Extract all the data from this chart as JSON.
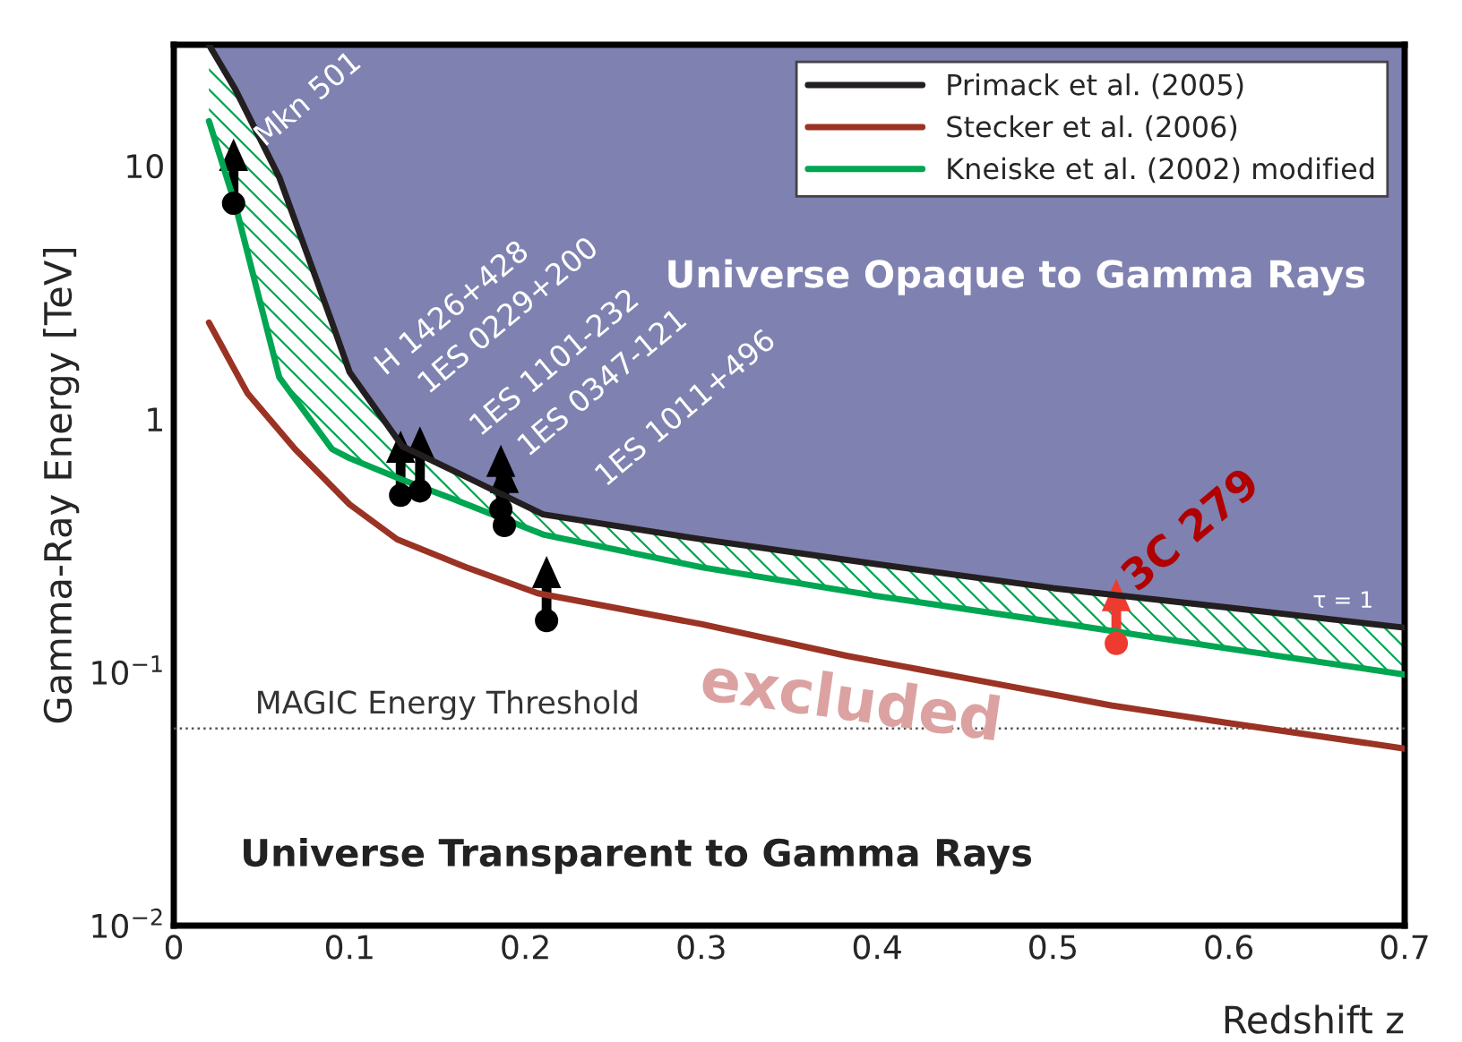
{
  "chart_data": {
    "type": "line",
    "xlabel": "Redshift z",
    "ylabel": "Gamma-Ray Energy [TeV]",
    "log": "y",
    "xlim": [
      0,
      0.7
    ],
    "ylim": [
      0.01,
      30
    ],
    "xticks": [
      0,
      0.1,
      0.2,
      0.3,
      0.4,
      0.5,
      0.6,
      0.7
    ],
    "yticks": [
      {
        "value": 0.01,
        "label": "10$^{−2}$"
      },
      {
        "value": 0.1,
        "label": "10$^{−1}$"
      },
      1,
      10
    ],
    "grid": false,
    "legend": "top right",
    "series": [
      {
        "name": "Primack et al. (2005)",
        "color": "#231f20",
        "x": [
          0.02,
          0.035,
          0.06,
          0.09,
          0.1,
          0.13,
          0.16,
          0.21,
          0.3,
          0.4,
          0.5,
          0.6,
          0.7
        ],
        "values": [
          30,
          20,
          9.0,
          2.4,
          1.53,
          0.78,
          0.62,
          0.42,
          0.335,
          0.267,
          0.215,
          0.18,
          0.15
        ]
      },
      {
        "name": "Stecker et al. (2006)",
        "color": "#9b3325",
        "x": [
          0.02,
          0.042,
          0.069,
          0.1,
          0.127,
          0.166,
          0.207,
          0.3,
          0.383,
          0.45,
          0.533,
          0.6,
          0.7
        ],
        "values": [
          2.4,
          1.26,
          0.76,
          0.46,
          0.335,
          0.26,
          0.205,
          0.155,
          0.116,
          0.095,
          0.074,
          0.063,
          0.05
        ]
      },
      {
        "name": "Kneiske et al. (2002) modified",
        "color": "#00a651",
        "x": [
          0.02,
          0.035,
          0.06,
          0.09,
          0.1,
          0.13,
          0.16,
          0.21,
          0.3,
          0.4,
          0.5,
          0.6,
          0.7
        ],
        "values": [
          15,
          7.0,
          1.46,
          0.76,
          0.7,
          0.575,
          0.48,
          0.35,
          0.26,
          0.2,
          0.158,
          0.124,
          0.098
        ]
      },
      {
        "type": "scatter",
        "marker": "circle",
        "color": "#000000",
        "x": [
          0.034,
          0.129,
          0.14,
          0.186,
          0.188,
          0.212
        ],
        "values": [
          7.1,
          0.5,
          0.52,
          0.44,
          0.38,
          0.16
        ]
      },
      {
        "type": "scatter",
        "marker": "circle",
        "color": "#ee3b2f",
        "x": [
          0.536
        ],
        "values": [
          0.13
        ]
      }
    ],
    "ref_lines": [
      {
        "axis": "y",
        "value": 0.06,
        "label": "MAGIC Energy Threshold",
        "color": "#555555",
        "line_style": "dotted"
      }
    ],
    "annotations": [
      "Mkn 501",
      "H 1426+428",
      "1ES 0229+200",
      "1ES 1101-232",
      "1ES 0347-121",
      "1ES 1011+496",
      "3C 279",
      "Universe Opaque to Gamma Rays",
      "Universe Transparent to Gamma Rays",
      "excluded",
      "τ = 1"
    ]
  }
}
